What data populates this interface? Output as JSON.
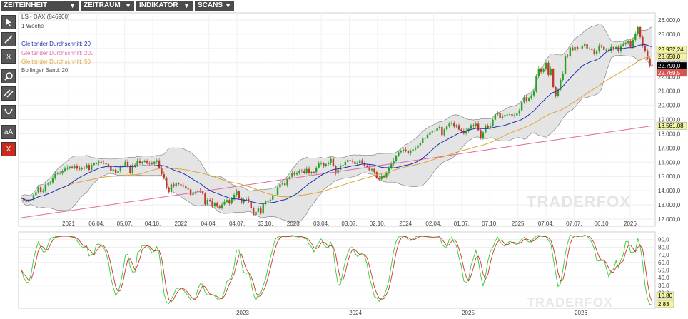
{
  "menu": [
    {
      "label": "ZEITEINHEIT"
    },
    {
      "label": "ZEITRAUM"
    },
    {
      "label": "INDIKATOR"
    },
    {
      "label": "SCANS"
    }
  ],
  "tools": [
    {
      "icon": "cursor-icon"
    },
    {
      "icon": "line-draw-icon"
    },
    {
      "icon": "percent-icon",
      "label": "%"
    },
    {
      "icon": "magnifier-icon"
    },
    {
      "icon": "parallel-lines-icon"
    },
    {
      "icon": "curve-icon"
    },
    {
      "icon": "text-icon",
      "label": "aA"
    },
    {
      "icon": "close-icon",
      "label": "X"
    }
  ],
  "header": {
    "symbol": "LS - DAX (846900)",
    "period": "1 Woche"
  },
  "legend": [
    {
      "label": "Gleitender Durchschnitt: 20",
      "color": "#1c2fb0"
    },
    {
      "label": "Gleitender Durchschnitt: 200",
      "color": "#e06aa6"
    },
    {
      "label": "Gleitender Durchschnitt: 50",
      "color": "#e0a53a"
    },
    {
      "label": "Bollinger Band: 20",
      "color": "#555555"
    }
  ],
  "watermark": "TRADERFOX",
  "colors": {
    "up": "#2aa02a",
    "down": "#c0392b",
    "band": "#e4e4e4",
    "sto_k": "#33cc33",
    "sto_d": "#cc3333"
  },
  "chart_data": [
    {
      "type": "candlestick",
      "title": "LS - DAX (846900)",
      "ylim": [
        11500,
        26500
      ],
      "yticks": [
        "26.000,0",
        "25.000,0",
        "24.000,0",
        "23.000,0",
        "22.000,0",
        "21.000,0",
        "20.000,0",
        "19.000,0",
        "18.000,0",
        "17.000,0",
        "16.000,0",
        "15.000,0",
        "14.000,0",
        "13.000,0",
        "12.000,0"
      ],
      "xticks": [
        "2021",
        "06.04.",
        "05.07.",
        "04.10.",
        "2022",
        "04.04.",
        "04.07.",
        "03.10.",
        "2023",
        "03.04.",
        "03.07.",
        "02.10.",
        "2024",
        "02.04.",
        "01.07.",
        "07.10.",
        "2025",
        "07.04.",
        "07.07.",
        "06.10.",
        "2026"
      ],
      "close": [
        13480,
        13310,
        13220,
        13340,
        13400,
        13690,
        13890,
        14250,
        13910,
        13950,
        14430,
        14490,
        14580,
        14910,
        15180,
        15250,
        15240,
        15380,
        15540,
        15620,
        15680,
        15620,
        15720,
        15540,
        15510,
        15610,
        15600,
        15810,
        15460,
        15800,
        15910,
        15920,
        16030,
        15970,
        15950,
        15860,
        15690,
        15390,
        15490,
        15220,
        15400,
        15690,
        15760,
        16030,
        15740,
        15250,
        15800,
        15750,
        16090,
        15930,
        16020,
        16080,
        15940,
        15900,
        15880,
        16030,
        16130,
        15590,
        15160,
        14920,
        14170,
        13900,
        14440,
        14300,
        14520,
        14450,
        14370,
        14300,
        14150,
        14090,
        13700,
        13800,
        13900,
        14000,
        13950,
        13790,
        13050,
        13360,
        13280,
        12900,
        13120,
        12890,
        12810,
        13030,
        13210,
        13340,
        13100,
        13420,
        13710,
        13950,
        13450,
        13170,
        13390,
        13400,
        13240,
        12760,
        12300,
        12510,
        12750,
        12390,
        13060,
        13240,
        13250,
        13370,
        13670,
        13700,
        14240,
        14450,
        14500,
        14400,
        14810,
        14970,
        15240,
        15140,
        15220,
        15420,
        15400,
        15250,
        15530,
        15220,
        15310,
        15300,
        15620,
        15900,
        15930,
        15730,
        15860,
        15950,
        16230,
        15730,
        15200,
        15480,
        15770,
        15810,
        16020,
        16150,
        16090,
        16030,
        15870,
        15920,
        16140,
        15930,
        15720,
        15700,
        15440,
        15530,
        15300,
        14900,
        14800,
        15050,
        14940,
        15230,
        15580,
        15880,
        16090,
        16450,
        16700,
        16770,
        16880,
        16780,
        16630,
        16800,
        16900,
        16960,
        17190,
        17350,
        17660,
        17700,
        17930,
        18100,
        18180,
        18210,
        18420,
        18480,
        17900,
        18300,
        18510,
        18700,
        18750,
        18500,
        18600,
        18300,
        18200,
        18010,
        18220,
        18350,
        18600,
        18540,
        18700,
        18250,
        17700,
        18100,
        18540,
        18430,
        18540,
        18990,
        19360,
        19470,
        19100,
        19210,
        19320,
        19350,
        19370,
        19230,
        19300,
        19420,
        19640,
        20210,
        20570,
        20320,
        20500,
        20700,
        20970,
        22040,
        22600,
        22350,
        22540,
        23000,
        22140,
        22540,
        21280,
        20640,
        21100,
        21780,
        22240,
        23500,
        23470,
        24060,
        23870,
        24100,
        23950,
        24000,
        24190,
        24300,
        24000,
        24000,
        23900,
        23600,
        23800,
        24200,
        24110,
        23900,
        23900,
        23800,
        24100,
        24000,
        24100,
        23800,
        24200,
        24300,
        24400,
        24500,
        24100,
        24600,
        25000,
        25500,
        24800,
        24200,
        23800,
        23300,
        22800,
        22790
      ],
      "latest_close": "22.790,0",
      "price_labels": [
        "23.932,24",
        "23.650,0",
        "22.790,0",
        "22.769,5",
        "18.561,08"
      ]
    },
    {
      "type": "line",
      "title": "Stochastik",
      "ylim": [
        0,
        100
      ],
      "yticks": [
        "90,0",
        "80,0",
        "70,0",
        "60,0",
        "50,0",
        "40,0",
        "30,0",
        "20,0"
      ],
      "xticks": [
        "2023",
        "2024",
        "2025",
        "2026"
      ],
      "value_labels": [
        "10,80",
        "2,83"
      ]
    }
  ]
}
